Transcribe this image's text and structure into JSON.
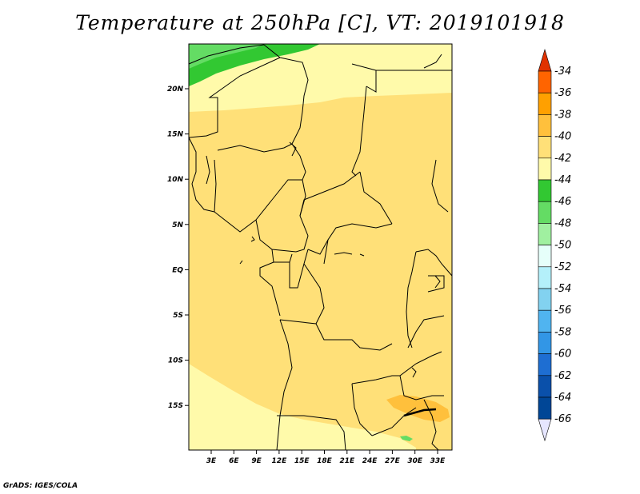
{
  "title": "Temperature at 250hPa [C], VT: 2019101918",
  "credit": "GrADS: IGES/COLA",
  "lat_labels": [
    "20N",
    "15N",
    "10N",
    "5N",
    "EQ",
    "5S",
    "10S",
    "15S"
  ],
  "lon_labels": [
    "3E",
    "6E",
    "9E",
    "12E",
    "15E",
    "18E",
    "21E",
    "24E",
    "27E",
    "30E",
    "33E"
  ],
  "colorbar": {
    "labels": [
      "-34",
      "-36",
      "-38",
      "-40",
      "-42",
      "-44",
      "-46",
      "-48",
      "-50",
      "-52",
      "-54",
      "-56",
      "-58",
      "-60",
      "-62",
      "-64",
      "-66"
    ],
    "colors": [
      "#e03200",
      "#ff6400",
      "#ffa000",
      "#ffc03c",
      "#ffe078",
      "#fffaaa",
      "#32c832",
      "#64dc64",
      "#a0f0a0",
      "#e6fffa",
      "#b4f0fa",
      "#82d2f0",
      "#50b4f0",
      "#3296e6",
      "#1e6ed2",
      "#0a50aa",
      "#004696",
      "#0a0a64"
    ],
    "top_arrow_color": "#e03200",
    "bottom_arrow_color": "#e6e6ff"
  },
  "map_colors": {
    "base": "#ffe078",
    "pale": "#fffaaa",
    "green": "#32c832",
    "light_green": "#64dc64",
    "orange": "#ffc03c"
  }
}
